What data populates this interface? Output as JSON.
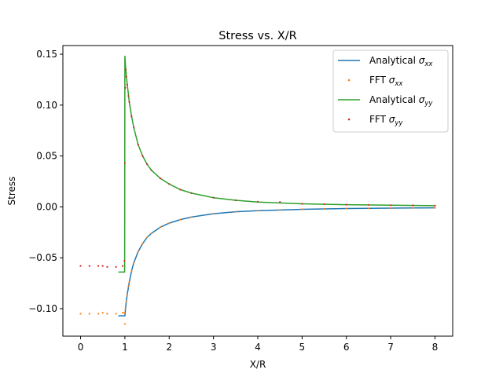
{
  "chart_data": {
    "type": "line",
    "title": "Stress vs. X/R",
    "xlabel": "X/R",
    "ylabel": "Stress",
    "xlim": [
      -0.4,
      8.4
    ],
    "ylim": [
      -0.127,
      0.1585
    ],
    "xticks": [
      0,
      1,
      2,
      3,
      4,
      5,
      6,
      7,
      8
    ],
    "xtick_labels": [
      "0",
      "1",
      "2",
      "3",
      "4",
      "5",
      "6",
      "7",
      "8"
    ],
    "yticks": [
      -0.1,
      -0.05,
      0.0,
      0.05,
      0.1,
      0.15
    ],
    "ytick_labels": [
      "−0.10",
      "−0.05",
      "0.00",
      "0.05",
      "0.10",
      "0.15"
    ],
    "grid": false,
    "legend_position": "upper right",
    "series": [
      {
        "name_prefix": "Analytical",
        "subscript": "xx",
        "style": "line",
        "color": "#1f77b4",
        "x": [
          0.85,
          0.99,
          1.0,
          1.02,
          1.05,
          1.1,
          1.15,
          1.2,
          1.3,
          1.4,
          1.5,
          1.6,
          1.8,
          2.0,
          2.25,
          2.5,
          3.0,
          3.5,
          4.0,
          5.0,
          6.0,
          7.0,
          8.0
        ],
        "y": [
          -0.107,
          -0.107,
          -0.107,
          -0.098,
          -0.087,
          -0.074,
          -0.063,
          -0.055,
          -0.044,
          -0.036,
          -0.03,
          -0.026,
          -0.02,
          -0.016,
          -0.0125,
          -0.01,
          -0.0067,
          -0.0048,
          -0.0037,
          -0.0024,
          -0.0016,
          -0.0012,
          -0.0009
        ]
      },
      {
        "name_prefix": "FFT",
        "subscript": "xx",
        "style": "points",
        "color": "#ff7f0e",
        "x": [
          0.0,
          0.2,
          0.4,
          0.5,
          0.6,
          0.8,
          0.95,
          0.99,
          1.0,
          1.01,
          1.03,
          1.05,
          1.08,
          1.1,
          1.15,
          1.2,
          1.3,
          1.4,
          1.5,
          1.6,
          1.8,
          2.0,
          2.25,
          2.5,
          3.0,
          3.5,
          4.0,
          4.5,
          5.0,
          5.5,
          6.0,
          6.5,
          7.0,
          7.5,
          8.0
        ],
        "y": [
          -0.105,
          -0.105,
          -0.105,
          -0.104,
          -0.105,
          -0.105,
          -0.104,
          -0.104,
          -0.115,
          -0.1,
          -0.093,
          -0.087,
          -0.078,
          -0.074,
          -0.063,
          -0.055,
          -0.044,
          -0.036,
          -0.03,
          -0.026,
          -0.02,
          -0.016,
          -0.0125,
          -0.01,
          -0.0067,
          -0.0048,
          -0.0037,
          -0.003,
          -0.0024,
          -0.002,
          -0.0016,
          -0.0014,
          -0.0012,
          -0.001,
          -0.0009
        ]
      },
      {
        "name_prefix": "Analytical",
        "subscript": "yy",
        "style": "line",
        "color": "#2ca02c",
        "x": [
          0.85,
          0.99,
          0.995,
          1.0,
          1.02,
          1.05,
          1.1,
          1.15,
          1.2,
          1.3,
          1.4,
          1.5,
          1.6,
          1.8,
          2.0,
          2.25,
          2.5,
          3.0,
          3.5,
          4.0,
          5.0,
          6.0,
          7.0,
          8.0
        ],
        "y": [
          -0.064,
          -0.064,
          -0.064,
          0.148,
          0.135,
          0.122,
          0.103,
          0.089,
          0.078,
          0.061,
          0.05,
          0.042,
          0.036,
          0.028,
          0.0225,
          0.017,
          0.0135,
          0.009,
          0.0065,
          0.0048,
          0.003,
          0.0022,
          0.0016,
          0.0012
        ]
      },
      {
        "name_prefix": "FFT",
        "subscript": "yy",
        "style": "points",
        "color": "#d62728",
        "x": [
          0.0,
          0.2,
          0.4,
          0.5,
          0.6,
          0.8,
          0.95,
          0.99,
          1.0,
          1.01,
          1.02,
          1.03,
          1.05,
          1.08,
          1.1,
          1.15,
          1.2,
          1.3,
          1.4,
          1.5,
          1.6,
          1.8,
          2.0,
          2.25,
          2.5,
          3.0,
          3.5,
          4.0,
          4.5,
          5.0,
          5.5,
          6.0,
          6.5,
          7.0,
          7.5,
          8.0
        ],
        "y": [
          -0.058,
          -0.058,
          -0.058,
          -0.058,
          -0.059,
          -0.059,
          -0.058,
          -0.053,
          0.043,
          0.117,
          0.135,
          0.128,
          0.12,
          0.109,
          0.103,
          0.089,
          0.078,
          0.061,
          0.05,
          0.042,
          0.036,
          0.028,
          0.0225,
          0.017,
          0.0135,
          0.009,
          0.0065,
          0.005,
          0.0048,
          0.003,
          0.0026,
          0.0022,
          0.002,
          0.0016,
          0.0015,
          0.0012
        ]
      }
    ]
  }
}
